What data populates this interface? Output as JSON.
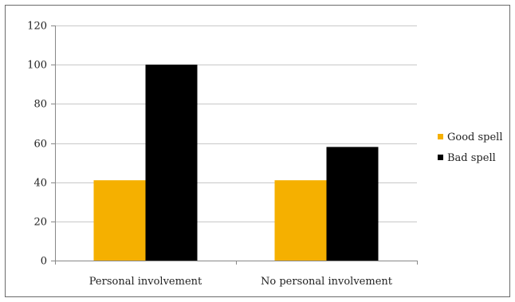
{
  "chart_data": {
    "type": "bar",
    "title": "",
    "xlabel": "",
    "ylabel": "",
    "categories": [
      "Personal involvement",
      "No personal involvement"
    ],
    "series": [
      {
        "name": "Good spell",
        "values": [
          41,
          41
        ],
        "color": "#f5b000"
      },
      {
        "name": "Bad spell",
        "values": [
          100,
          58
        ],
        "color": "#000000"
      }
    ],
    "ylim": [
      0,
      120
    ],
    "yticks": [
      0,
      20,
      40,
      60,
      80,
      100,
      120
    ],
    "grid": true,
    "legend": "right"
  }
}
